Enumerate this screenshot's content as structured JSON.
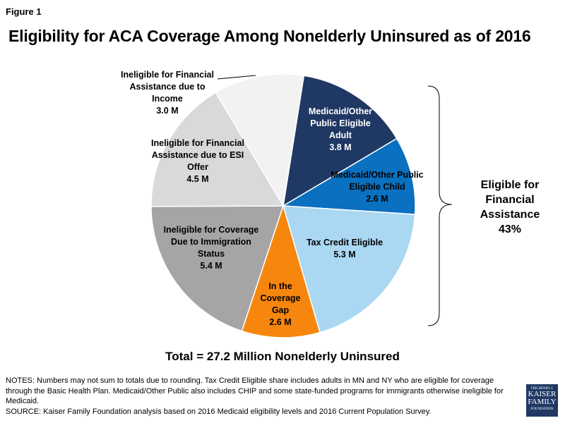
{
  "figure_label": "Figure 1",
  "chart_data": {
    "type": "pie",
    "title": "Eligibility for ACA Coverage Among Nonelderly Uninsured as of 2016",
    "unit": "M",
    "slices": [
      {
        "label": "Medicaid/Other\nPublic Eligible\nAdult\n3.8 M",
        "value": 3.8,
        "color": "#1f3864"
      },
      {
        "label": "Medicaid/Other Public\nEligible Child\n2.6 M",
        "value": 2.6,
        "color": "#0a70c0"
      },
      {
        "label": "Tax Credit Eligible\n5.3 M",
        "value": 5.3,
        "color": "#aad8f2"
      },
      {
        "label": "In the\nCoverage\nGap\n2.6 M",
        "value": 2.6,
        "color": "#f7860e"
      },
      {
        "label": "Ineligible for Coverage\nDue to Immigration\nStatus\n5.4 M",
        "value": 5.4,
        "color": "#a5a5a5"
      },
      {
        "label": "Ineligible for Financial\nAssistance due to ESI\nOffer\n4.5 M",
        "value": 4.5,
        "color": "#d9d9d9"
      },
      {
        "label": "Ineligible for Financial\nAssistance due to\nIncome\n3.0 M",
        "value": 3.0,
        "color": "#f2f2f2"
      }
    ],
    "bracket_annotation": "Eligible for\nFinancial\nAssistance\n43%",
    "total": "Total = 27.2 Million Nonelderly Uninsured"
  },
  "notes": "NOTES: Numbers may not sum to totals due to rounding.  Tax Credit Eligible share includes adults in MN and NY who are eligible for coverage through the Basic Health Plan. Medicaid/Other Public also includes CHIP and some state-funded programs for immigrants otherwise ineligible for Medicaid.",
  "source": "SOURCE: Kaiser Family Foundation  analysis based on 2016 Medicaid eligibility levels and 2016 Current Population Survey.",
  "logo": {
    "line1": "THE HENRY J.",
    "line2": "KAISER",
    "line3": "FAMILY",
    "line4": "FOUNDATION"
  }
}
